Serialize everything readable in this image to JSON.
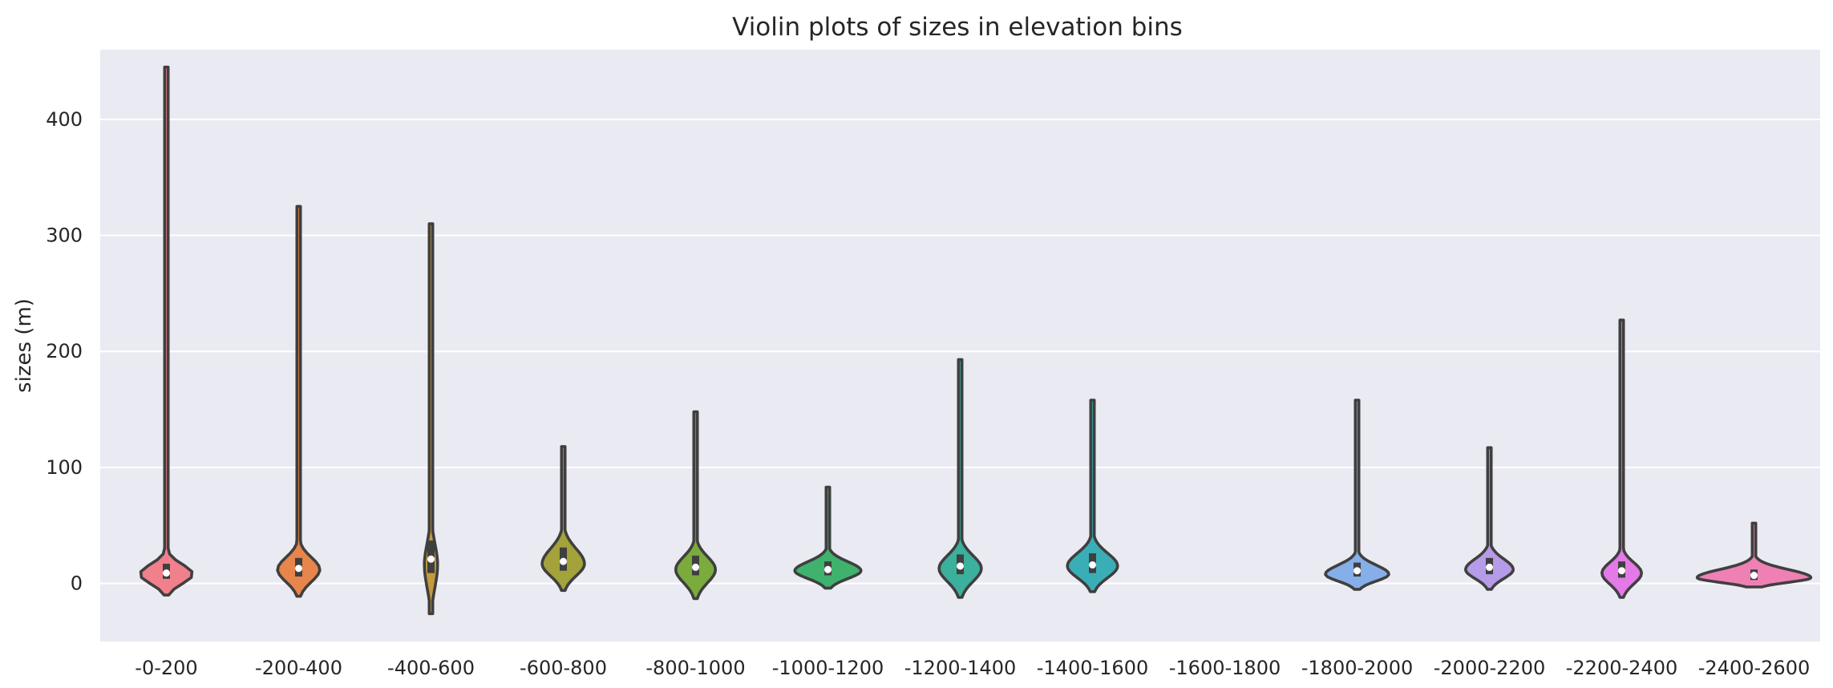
{
  "chart_data": {
    "type": "violin",
    "title": "Violin plots of sizes in elevation bins",
    "xlabel": "",
    "ylabel": "sizes (m)",
    "ylim": [
      -50,
      460
    ],
    "yticks": [
      0,
      100,
      200,
      300,
      400
    ],
    "grid": true,
    "background": "#eaeaf2",
    "categories": [
      "-0-200",
      "-200-400",
      "-400-600",
      "-600-800",
      "-800-1000",
      "-1000-1200",
      "-1200-1400",
      "-1400-1600",
      "-1600-1800",
      "-1800-2000",
      "-2000-2200",
      "-2200-2400",
      "-2400-2600"
    ],
    "violins": [
      {
        "category": "-0-200",
        "color": "#f0808c",
        "min": -10,
        "max": 445,
        "median": 9,
        "q1": 4,
        "q3": 17,
        "mode": 8,
        "max_halfwidth": 0.4
      },
      {
        "category": "-200-400",
        "color": "#e8854a",
        "min": -11,
        "max": 325,
        "median": 13,
        "q1": 6,
        "q3": 22,
        "mode": 12,
        "max_halfwidth": 0.32
      },
      {
        "category": "-400-600",
        "color": "#c49a3c",
        "min": -26,
        "max": 310,
        "median": 21,
        "q1": 9,
        "q3": 37,
        "mode": 16,
        "max_halfwidth": 0.1
      },
      {
        "category": "-600-800",
        "color": "#a3a23b",
        "min": -6,
        "max": 118,
        "median": 19,
        "q1": 11,
        "q3": 31,
        "mode": 17,
        "max_halfwidth": 0.32
      },
      {
        "category": "-800-1000",
        "color": "#7aab3c",
        "min": -13,
        "max": 148,
        "median": 14,
        "q1": 7,
        "q3": 24,
        "mode": 12,
        "max_halfwidth": 0.3
      },
      {
        "category": "-1000-1200",
        "color": "#3fb26e",
        "min": -4,
        "max": 83,
        "median": 12,
        "q1": 7,
        "q3": 19,
        "mode": 11,
        "max_halfwidth": 0.5
      },
      {
        "category": "-1200-1400",
        "color": "#3bb09c",
        "min": -12,
        "max": 193,
        "median": 15,
        "q1": 8,
        "q3": 25,
        "mode": 13,
        "max_halfwidth": 0.32
      },
      {
        "category": "-1400-1600",
        "color": "#3aaeb7",
        "min": -7,
        "max": 158,
        "median": 16,
        "q1": 9,
        "q3": 26,
        "mode": 15,
        "max_halfwidth": 0.38
      },
      {
        "category": "-1800-2000",
        "color": "#86aee8",
        "min": -5,
        "max": 158,
        "median": 11,
        "q1": 6,
        "q3": 18,
        "mode": 8,
        "max_halfwidth": 0.48
      },
      {
        "category": "-2000-2200",
        "color": "#b59be8",
        "min": -5,
        "max": 117,
        "median": 14,
        "q1": 8,
        "q3": 22,
        "mode": 12,
        "max_halfwidth": 0.36
      },
      {
        "category": "-2200-2400",
        "color": "#e37ae8",
        "min": -12,
        "max": 227,
        "median": 11,
        "q1": 5,
        "q3": 19,
        "mode": 9,
        "max_halfwidth": 0.3
      },
      {
        "category": "-2400-2600",
        "color": "#ef80b4",
        "min": -3,
        "max": 52,
        "median": 7,
        "q1": 3,
        "q3": 12,
        "mode": 5,
        "max_halfwidth": 0.86
      }
    ]
  }
}
